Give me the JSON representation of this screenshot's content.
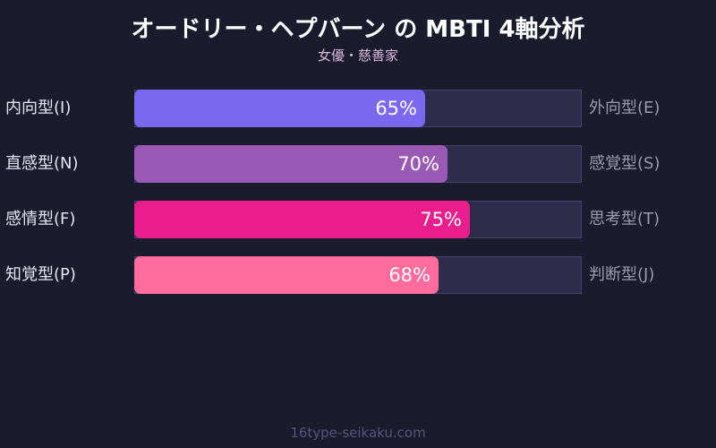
{
  "header": {
    "title": "オードリー・ヘプバーン の MBTI 4軸分析",
    "subtitle": "女優・慈善家"
  },
  "footer": {
    "text": "16type-seikaku.com"
  },
  "chart_data": {
    "type": "bar",
    "orientation": "horizontal",
    "title": "オードリー・ヘプバーン の MBTI 4軸分析",
    "subtitle": "女優・慈善家",
    "categories": [
      "内向型(I) / 外向型(E)",
      "直感型(N) / 感覚型(S)",
      "感情型(F) / 思考型(T)",
      "知覚型(P) / 判断型(J)"
    ],
    "left_labels": [
      "内向型(I)",
      "直感型(N)",
      "感情型(F)",
      "知覚型(P)"
    ],
    "right_labels": [
      "外向型(E)",
      "感覚型(S)",
      "思考型(T)",
      "判断型(J)"
    ],
    "values": [
      65,
      70,
      75,
      68
    ],
    "value_labels": [
      "65%",
      "70%",
      "75%",
      "68%"
    ],
    "colors": [
      "#7b68ee",
      "#9b59b6",
      "#e91e8c",
      "#ff6b9d"
    ],
    "xlim": [
      0,
      100
    ],
    "xlabel": "",
    "ylabel": "",
    "grid": false,
    "legend": false
  },
  "rows": [
    {
      "left": "内向型(I)",
      "right": "外向型(E)",
      "value": 65,
      "label": "65%",
      "color": "#7b68ee"
    },
    {
      "left": "直感型(N)",
      "right": "感覚型(S)",
      "value": 70,
      "label": "70%",
      "color": "#9b59b6"
    },
    {
      "left": "感情型(F)",
      "right": "思考型(T)",
      "value": 75,
      "label": "75%",
      "color": "#e91e8c"
    },
    {
      "left": "知覚型(P)",
      "right": "判断型(J)",
      "value": 68,
      "label": "68%",
      "color": "#ff6b9d"
    }
  ]
}
